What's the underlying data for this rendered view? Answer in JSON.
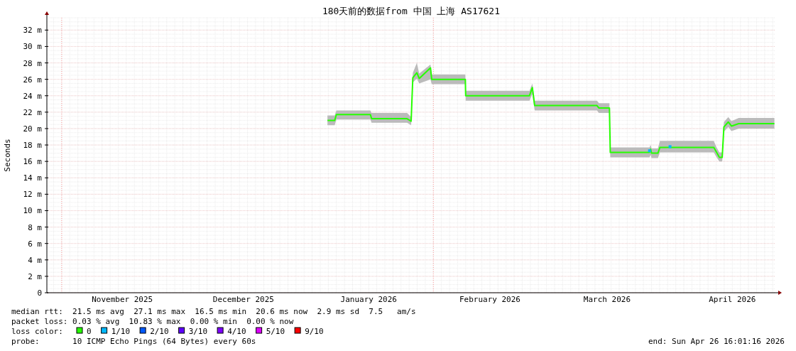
{
  "chart_data": {
    "type": "line",
    "title": "180天前的数据from 中国 上海 AS17621",
    "ylabel": "Seconds",
    "xlim": [
      "2025-10-28T08:00",
      "2026-04-26T16:01"
    ],
    "xticks": [
      {
        "value": "2025-11-16",
        "label": "November 2025"
      },
      {
        "value": "2025-12-16",
        "label": "December 2025"
      },
      {
        "value": "2026-01-16",
        "label": "January 2026"
      },
      {
        "value": "2026-02-15",
        "label": "February 2026"
      },
      {
        "value": "2026-03-16",
        "label": "March 2026"
      },
      {
        "value": "2026-04-16",
        "label": "April 2026"
      }
    ],
    "ylim": [
      0,
      33.5
    ],
    "yticks": [
      {
        "value": 0,
        "label": "0"
      },
      {
        "value": 2,
        "label": "2 m"
      },
      {
        "value": 4,
        "label": "4 m"
      },
      {
        "value": 6,
        "label": "6 m"
      },
      {
        "value": 8,
        "label": "8 m"
      },
      {
        "value": 10,
        "label": "10 m"
      },
      {
        "value": 12,
        "label": "12 m"
      },
      {
        "value": 14,
        "label": "14 m"
      },
      {
        "value": 16,
        "label": "16 m"
      },
      {
        "value": 18,
        "label": "18 m"
      },
      {
        "value": 20,
        "label": "20 m"
      },
      {
        "value": 22,
        "label": "22 m"
      },
      {
        "value": 24,
        "label": "24 m"
      },
      {
        "value": 26,
        "label": "26 m"
      },
      {
        "value": 28,
        "label": "28 m"
      },
      {
        "value": 30,
        "label": "30 m"
      },
      {
        "value": 32,
        "label": "32 m"
      }
    ],
    "grid": true,
    "legend": "bottom",
    "legend_title": "loss color:",
    "ref_lines": [
      {
        "axis": "x",
        "value": "2025-11-01",
        "color": "#ff9999",
        "line_style": "dotted"
      },
      {
        "axis": "x",
        "value": "2026-02-01",
        "color": "#ff9999",
        "line_style": "dotted"
      }
    ],
    "series": [
      {
        "name": "0",
        "color": "#26ff00",
        "x": [
          "2026-01-05T19:00",
          "2026-01-07T14:00",
          "2026-01-08T00:00",
          "2026-01-16T10:00",
          "2026-01-16T17:00",
          "2026-01-25T12:00",
          "2026-01-26T12:00",
          "2026-01-26T22:00",
          "2026-01-27T22:00",
          "2026-01-28T12:00",
          "2026-01-31T07:00",
          "2026-01-31T14:00",
          "2026-02-08T22:00",
          "2026-02-09T00:00",
          "2026-02-24T19:00",
          "2026-02-25T12:00",
          "2026-02-26T02:00",
          "2026-03-13T12:00",
          "2026-03-14T00:00",
          "2026-03-16T14:00",
          "2026-03-16T19:00",
          "2026-03-26T12:00",
          "2026-03-26T19:00",
          "2026-03-27T00:00",
          "2026-03-28T14:00",
          "2026-03-29T02:00",
          "2026-04-11T10:00",
          "2026-04-12T00:00",
          "2026-04-12T19:00",
          "2026-04-13T12:00",
          "2026-04-13T22:00",
          "2026-04-15T00:00",
          "2026-04-15T19:00",
          "2026-04-17T14:00",
          "2026-04-26T10:00"
        ],
        "values": [
          21.0,
          21.0,
          21.7,
          21.7,
          21.2,
          21.2,
          20.9,
          26.2,
          26.8,
          26.1,
          27.4,
          26.0,
          26.0,
          24.0,
          24.0,
          25.0,
          22.8,
          22.8,
          22.5,
          22.5,
          17.1,
          17.1,
          17.5,
          17.0,
          17.0,
          17.7,
          17.7,
          17.2,
          16.5,
          16.5,
          20.2,
          20.8,
          20.3,
          20.6,
          20.6
        ],
        "lower": [
          20.4,
          20.4,
          21.1,
          21.1,
          20.7,
          20.7,
          20.4,
          25.6,
          26.1,
          25.5,
          26.0,
          25.4,
          25.4,
          23.4,
          23.4,
          24.2,
          22.2,
          22.2,
          21.9,
          21.9,
          16.5,
          16.5,
          16.8,
          16.4,
          16.4,
          17.1,
          17.1,
          16.6,
          16.0,
          16.0,
          19.6,
          20.2,
          19.7,
          20.0,
          20.0
        ],
        "upper": [
          21.6,
          21.6,
          22.2,
          22.2,
          21.9,
          21.9,
          21.4,
          26.8,
          28.0,
          26.7,
          27.8,
          26.6,
          26.6,
          24.6,
          24.6,
          25.5,
          23.4,
          23.4,
          23.1,
          23.1,
          17.7,
          17.7,
          18.0,
          17.6,
          17.6,
          18.5,
          18.5,
          17.8,
          17.1,
          17.1,
          20.8,
          21.4,
          20.9,
          21.3,
          21.3
        ]
      },
      {
        "name": "1/10",
        "color": "#00b8ff",
        "type": "scatter",
        "marker": "square",
        "x": [
          "2026-03-26T12:00",
          "2026-03-31T14:00"
        ],
        "values": [
          17.3,
          17.8
        ]
      },
      {
        "name": "2/10",
        "color": "#0059ff",
        "type": "scatter"
      },
      {
        "name": "3/10",
        "color": "#5e00ff",
        "type": "scatter"
      },
      {
        "name": "4/10",
        "color": "#7e00ff",
        "type": "scatter"
      },
      {
        "name": "5/10",
        "color": "#dd00ff",
        "type": "scatter"
      },
      {
        "name": "9/10",
        "color": "#ff0000",
        "type": "scatter"
      }
    ],
    "annotations": [
      "median rtt:  21.5 ms avg  27.1 ms max  16.5 ms min  20.6 ms now  2.9 ms sd  7.5   am/s",
      "packet loss: 0.03 % avg  10.83 % max  0.00 % min  0.00 % now",
      "probe:       10 ICMP Echo Pings (64 Bytes) every 60s",
      "end: Sun Apr 26 16:01:16 2026"
    ]
  }
}
